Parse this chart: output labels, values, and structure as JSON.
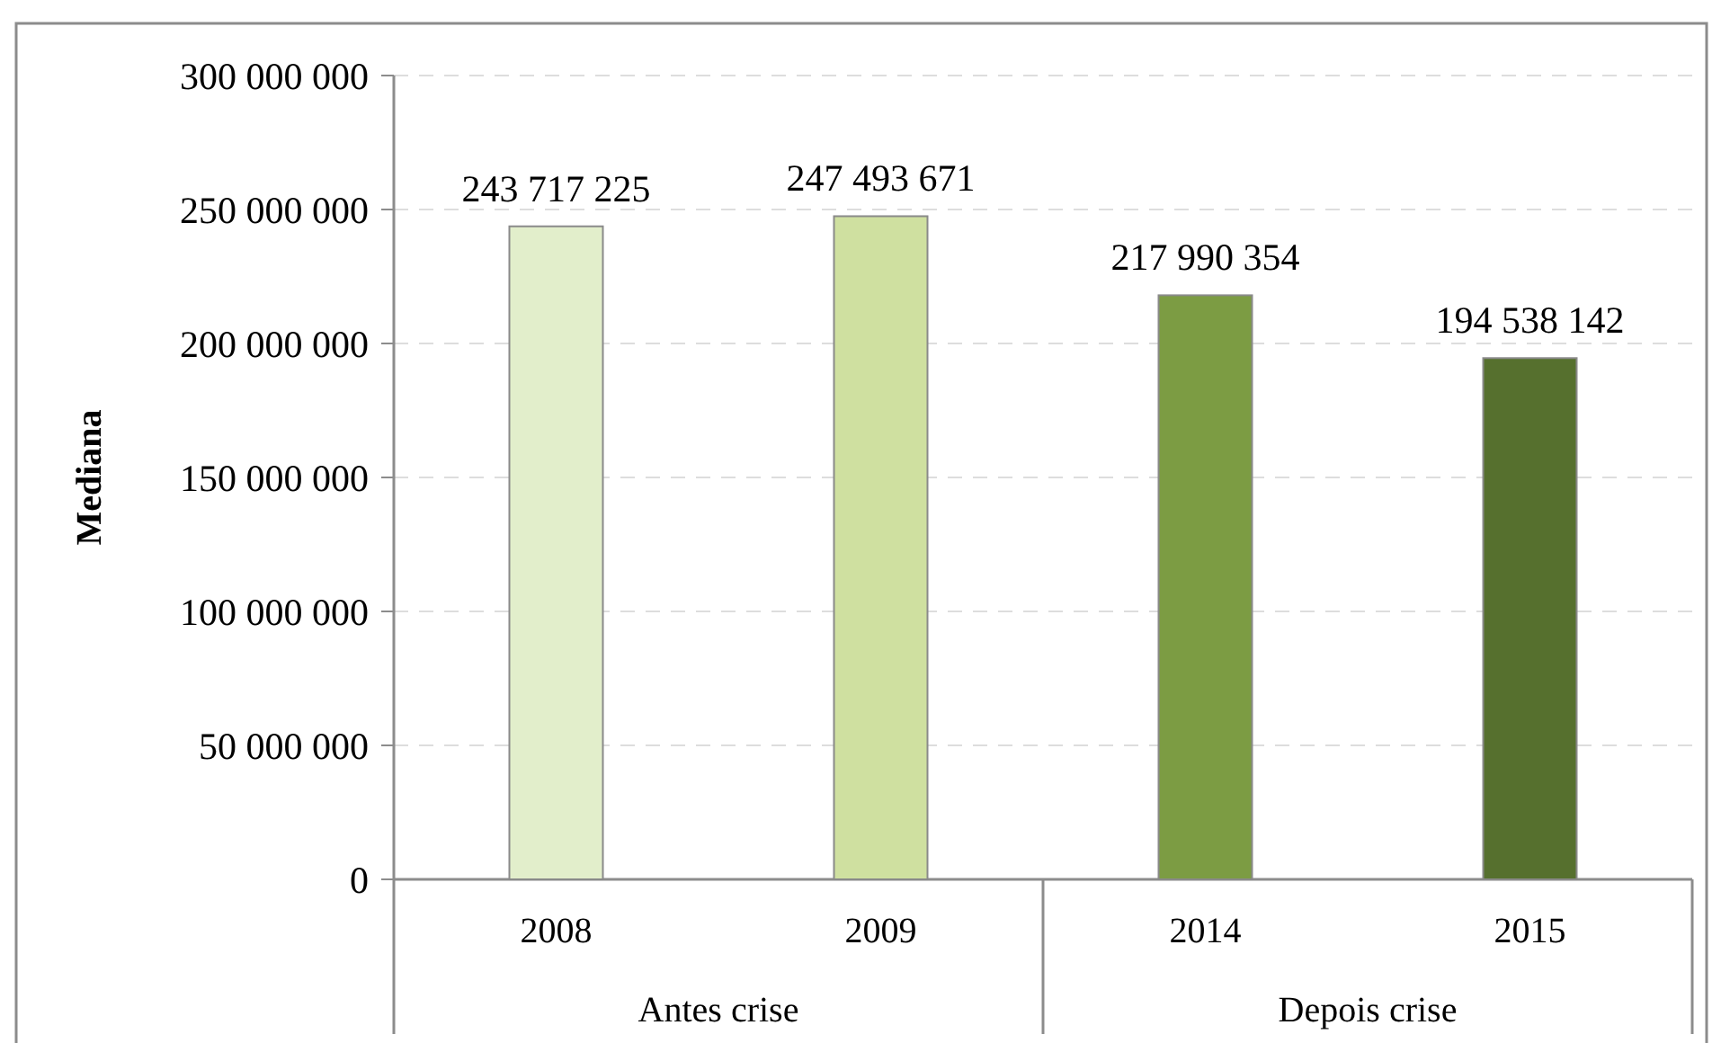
{
  "chart_data": {
    "type": "bar",
    "ylabel": "Mediana",
    "categories": [
      "2008",
      "2009",
      "2014",
      "2015"
    ],
    "values": [
      243717225,
      247493671,
      217990354,
      194538142
    ],
    "colors": [
      "#e2eecb",
      "#cfe0a0",
      "#7c9c43",
      "#56702e"
    ],
    "value_labels": [
      "243 717 225",
      "247 493 671",
      "217 990 354",
      "194 538 142"
    ],
    "ylim": [
      0,
      300000000
    ],
    "yticks": [
      {
        "value": 0,
        "label": "0"
      },
      {
        "value": 50000000,
        "label": "50 000 000"
      },
      {
        "value": 100000000,
        "label": "100 000 000"
      },
      {
        "value": 150000000,
        "label": "150 000 000"
      },
      {
        "value": 200000000,
        "label": "200 000 000"
      },
      {
        "value": 250000000,
        "label": "250 000 000"
      },
      {
        "value": 300000000,
        "label": "300 000 000"
      }
    ],
    "grid": "y",
    "annotations": [
      "Antes crise",
      "Depois crise"
    ]
  }
}
